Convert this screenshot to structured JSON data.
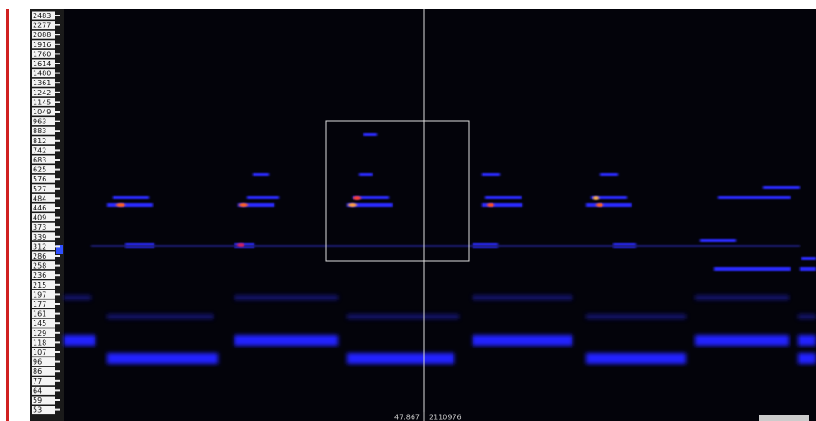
{
  "axis": {
    "labels": [
      "2483",
      "2277",
      "2088",
      "1916",
      "1760",
      "1614",
      "1480",
      "1361",
      "1242",
      "1145",
      "1049",
      "963",
      "883",
      "812",
      "742",
      "683",
      "625",
      "576",
      "527",
      "484",
      "446",
      "409",
      "373",
      "339",
      "312",
      "286",
      "258",
      "236",
      "215",
      "197",
      "177",
      "161",
      "145",
      "129",
      "118",
      "107",
      "96",
      "86",
      "77",
      "64",
      "59",
      "53"
    ]
  },
  "status": {
    "time": "47.867",
    "sample": "2110976"
  }
}
